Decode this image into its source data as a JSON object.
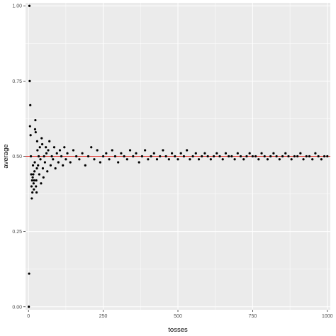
{
  "chart_data": {
    "type": "scatter",
    "title": "",
    "xlabel": "tosses",
    "ylabel": "average",
    "xlim": [
      -10,
      1010
    ],
    "ylim": [
      -0.01,
      1.01
    ],
    "x_ticks": [
      0,
      250,
      500,
      750,
      1000
    ],
    "x_tick_labels": [
      "0",
      "250",
      "500",
      "750",
      "1000"
    ],
    "y_ticks": [
      0.0,
      0.25,
      0.5,
      0.75,
      1.0
    ],
    "y_tick_labels": [
      "0.00",
      "0.25",
      "0.50",
      "0.75",
      "1.00"
    ],
    "grid": true,
    "reference_line": {
      "y": 0.5,
      "color": "#e0302a"
    },
    "point_color": "#000000",
    "panel_background": "#ebebeb",
    "grid_color": "#ffffff",
    "series": [
      {
        "x": [
          1,
          2,
          3,
          4,
          5,
          6,
          7,
          8,
          9,
          10,
          11,
          12,
          13,
          14,
          15,
          16,
          17,
          18,
          19,
          20,
          21,
          22,
          23,
          24,
          25,
          26,
          27,
          28,
          29,
          30,
          32,
          34,
          36,
          38,
          40,
          42,
          44,
          46,
          48,
          50,
          52,
          55,
          58,
          60,
          63,
          66,
          70,
          74,
          78,
          82,
          86,
          90,
          95,
          100,
          105,
          110,
          115,
          120,
          125,
          130,
          140,
          150,
          160,
          170,
          180,
          190,
          200,
          210,
          220,
          230,
          240,
          250,
          260,
          270,
          280,
          290,
          300,
          310,
          320,
          330,
          340,
          350,
          360,
          370,
          380,
          390,
          400,
          410,
          420,
          430,
          440,
          450,
          460,
          470,
          480,
          490,
          500,
          510,
          520,
          530,
          540,
          550,
          560,
          570,
          580,
          590,
          600,
          610,
          620,
          630,
          640,
          650,
          660,
          670,
          680,
          690,
          700,
          710,
          720,
          730,
          740,
          750,
          760,
          770,
          780,
          790,
          800,
          810,
          820,
          830,
          840,
          850,
          860,
          870,
          880,
          890,
          900,
          910,
          920,
          930,
          940,
          950,
          960,
          970,
          980,
          990,
          1000
        ],
        "y": [
          0.0,
          0.11,
          1.0,
          0.75,
          0.6,
          0.67,
          0.57,
          0.5,
          0.44,
          0.4,
          0.36,
          0.42,
          0.38,
          0.43,
          0.47,
          0.44,
          0.41,
          0.39,
          0.42,
          0.45,
          0.48,
          0.59,
          0.62,
          0.58,
          0.4,
          0.42,
          0.38,
          0.46,
          0.55,
          0.52,
          0.47,
          0.5,
          0.44,
          0.53,
          0.49,
          0.41,
          0.56,
          0.54,
          0.46,
          0.43,
          0.5,
          0.48,
          0.53,
          0.51,
          0.45,
          0.52,
          0.55,
          0.47,
          0.5,
          0.49,
          0.53,
          0.46,
          0.51,
          0.48,
          0.52,
          0.5,
          0.47,
          0.53,
          0.49,
          0.51,
          0.48,
          0.52,
          0.5,
          0.49,
          0.51,
          0.47,
          0.5,
          0.53,
          0.49,
          0.52,
          0.48,
          0.5,
          0.51,
          0.49,
          0.52,
          0.5,
          0.48,
          0.51,
          0.5,
          0.49,
          0.52,
          0.5,
          0.51,
          0.48,
          0.5,
          0.52,
          0.49,
          0.5,
          0.51,
          0.49,
          0.5,
          0.52,
          0.5,
          0.49,
          0.51,
          0.5,
          0.49,
          0.51,
          0.5,
          0.52,
          0.49,
          0.5,
          0.51,
          0.49,
          0.5,
          0.51,
          0.5,
          0.49,
          0.5,
          0.51,
          0.5,
          0.49,
          0.51,
          0.5,
          0.5,
          0.49,
          0.51,
          0.5,
          0.49,
          0.5,
          0.51,
          0.5,
          0.5,
          0.49,
          0.51,
          0.5,
          0.49,
          0.5,
          0.51,
          0.5,
          0.49,
          0.5,
          0.51,
          0.5,
          0.49,
          0.5,
          0.5,
          0.51,
          0.49,
          0.5,
          0.5,
          0.49,
          0.51,
          0.5,
          0.49,
          0.5,
          0.5
        ]
      }
    ]
  }
}
